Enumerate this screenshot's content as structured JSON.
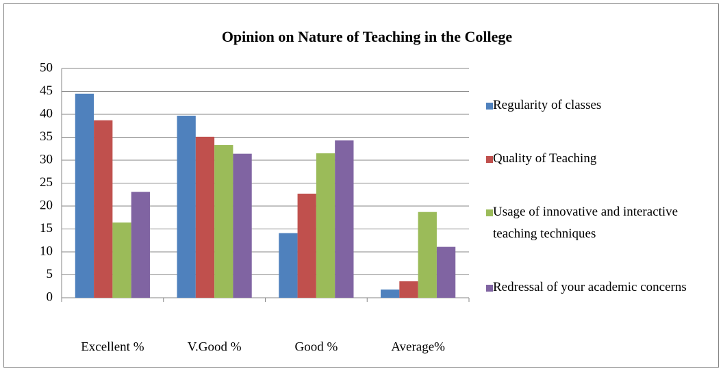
{
  "chart_data": {
    "type": "bar",
    "title": "Opinion on Nature of Teaching in the College",
    "categories": [
      "Excellent %",
      "V.Good %",
      "Good %",
      "Average%"
    ],
    "series": [
      {
        "name": "Regularity of classes",
        "color": "#4f81bd",
        "values": [
          44.5,
          39.7,
          14.1,
          1.8
        ]
      },
      {
        "name": "Quality of Teaching",
        "color": "#c0504d",
        "values": [
          38.7,
          35.1,
          22.7,
          3.6
        ]
      },
      {
        "name": "Usage of innovative and interactive teaching techniques",
        "color": "#9bbb59",
        "values": [
          16.4,
          33.3,
          31.5,
          18.7
        ]
      },
      {
        "name": "Redressal of your academic concerns",
        "color": "#8064a2",
        "values": [
          23.1,
          31.4,
          34.3,
          11.1
        ]
      }
    ],
    "ylim": [
      0,
      50
    ],
    "yticks": [
      0,
      5,
      10,
      15,
      20,
      25,
      30,
      35,
      40,
      45,
      50
    ],
    "grid": true,
    "legend": "right"
  }
}
